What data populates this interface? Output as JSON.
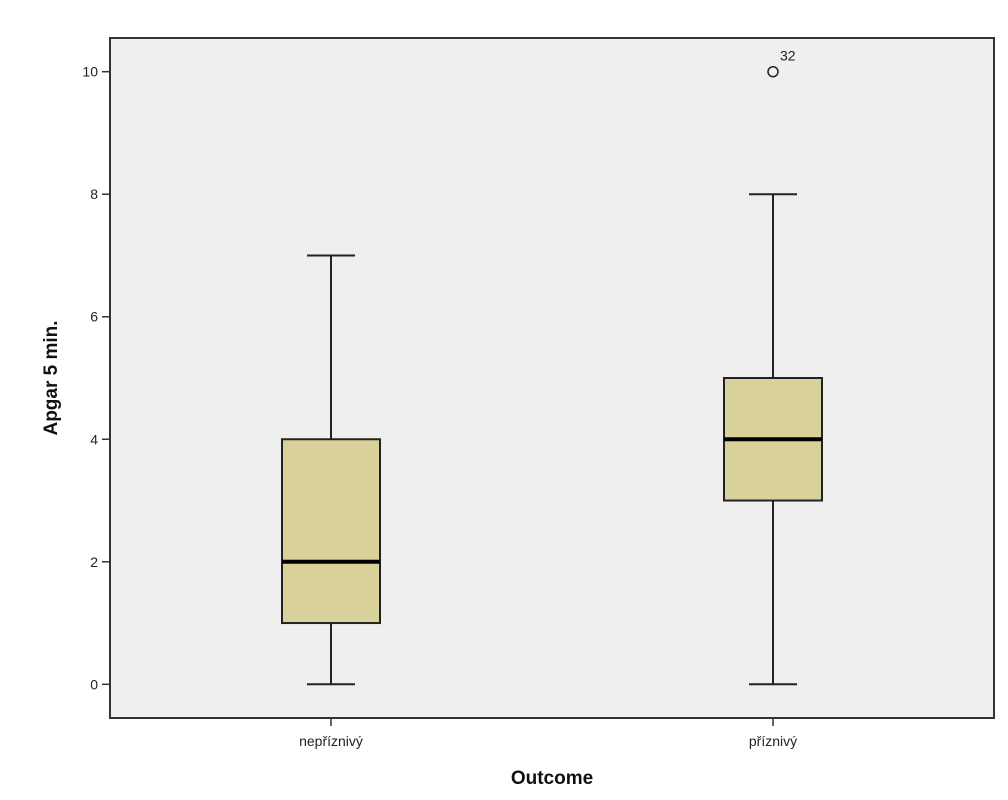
{
  "chart_data": {
    "type": "boxplot",
    "xlabel": "Outcome",
    "ylabel": "Apgar 5 min.",
    "ylim": [
      -0.55,
      10.55
    ],
    "yticks": [
      0,
      2,
      4,
      6,
      8,
      10
    ],
    "grid": false,
    "colors": {
      "plot_background": "#efefef",
      "box_fill": "#d8d19a",
      "line": "#222222"
    },
    "categories": [
      "nepříznivý",
      "příznivý"
    ],
    "boxes": [
      {
        "category": "nepříznivý",
        "whisker_low": 0,
        "q1": 1,
        "median": 2,
        "q3": 4,
        "whisker_high": 7,
        "outliers": []
      },
      {
        "category": "příznivý",
        "whisker_low": 0,
        "q1": 3,
        "median": 4,
        "q3": 5,
        "whisker_high": 8,
        "outliers": [
          {
            "value": 10,
            "label": "32"
          }
        ]
      }
    ]
  }
}
